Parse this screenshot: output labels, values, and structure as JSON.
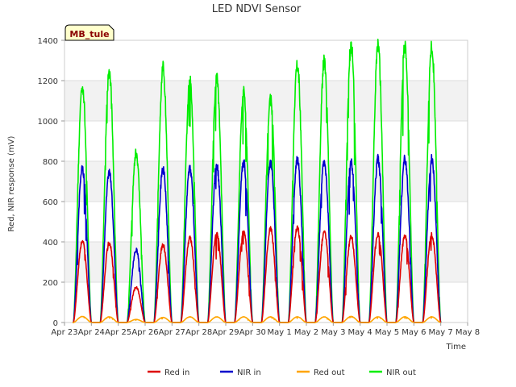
{
  "chart_data": {
    "type": "line",
    "title": "LED NDVI Sensor",
    "xlabel": "Time",
    "ylabel": "Red, NIR response (mV)",
    "badge": "MB_tule",
    "ylim": [
      0,
      1400
    ],
    "yticks": [
      0,
      200,
      400,
      600,
      800,
      1000,
      1200,
      1400
    ],
    "xlim": [
      0,
      15
    ],
    "xtick_labels": [
      "Apr 23",
      "Apr 24",
      "Apr 25",
      "Apr 26",
      "Apr 27",
      "Apr 28",
      "Apr 29",
      "Apr 30",
      "May 1",
      "May 2",
      "May 3",
      "May 4",
      "May 5",
      "May 6",
      "May 7",
      "May 8"
    ],
    "grid": "horizontal bands",
    "legend_position": "bottom",
    "days": [
      "Apr 23",
      "Apr 24",
      "Apr 25",
      "Apr 26",
      "Apr 27",
      "Apr 28",
      "Apr 29",
      "Apr 30",
      "May 1",
      "May 2",
      "May 3",
      "May 4",
      "May 5",
      "May 6"
    ],
    "series": [
      {
        "name": "Red in",
        "color": "#dd0000",
        "daily_peak": [
          405,
          395,
          175,
          385,
          420,
          440,
          450,
          465,
          470,
          450,
          425,
          440,
          430,
          435
        ]
      },
      {
        "name": "NIR in",
        "color": "#0000cc",
        "daily_peak": [
          765,
          745,
          360,
          760,
          765,
          780,
          795,
          790,
          805,
          800,
          795,
          810,
          810,
          810
        ]
      },
      {
        "name": "Red out",
        "color": "#ffa500",
        "daily_peak": [
          30,
          28,
          15,
          25,
          28,
          28,
          28,
          28,
          28,
          28,
          30,
          28,
          28,
          28
        ]
      },
      {
        "name": "NIR out",
        "color": "#00ee00",
        "daily_peak": [
          1175,
          1240,
          840,
          1260,
          1195,
          1210,
          1140,
          1110,
          1280,
          1300,
          1380,
          1370,
          1375,
          1365
        ]
      }
    ]
  }
}
